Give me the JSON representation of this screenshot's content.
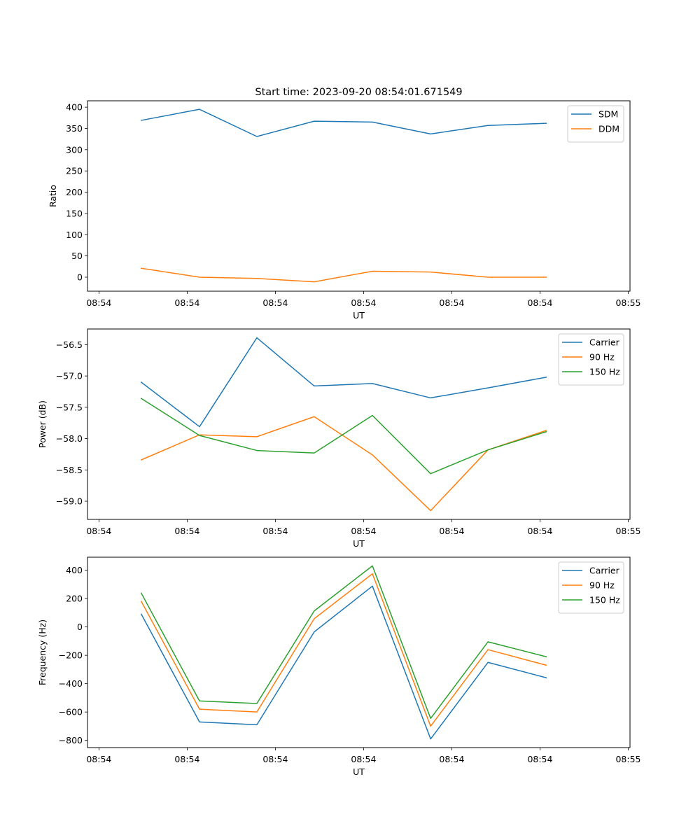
{
  "title": "Start time: 2023-09-20 08:54:01.671549",
  "colors": {
    "blue": "#1f77b4",
    "orange": "#ff7f0e",
    "green": "#2ca02c"
  },
  "chart_data": [
    {
      "type": "line",
      "title": "Start time: 2023-09-20 08:54:01.671549",
      "xlabel": "UT",
      "ylabel": "Ratio",
      "x": [
        4.8,
        11.4,
        17.9,
        24.4,
        31.0,
        37.6,
        44.1,
        50.7
      ],
      "x_units": "seconds after first tick",
      "xlim": [
        -1.3,
        60.2
      ],
      "xticks": [
        0,
        10,
        20,
        30,
        40,
        50,
        60
      ],
      "xtick_labels": [
        "08:54",
        "08:54",
        "08:54",
        "08:54",
        "08:54",
        "08:54",
        "08:55"
      ],
      "ylim": [
        -33,
        415
      ],
      "yticks": [
        0,
        50,
        100,
        150,
        200,
        250,
        300,
        350,
        400
      ],
      "ytick_labels": [
        "0",
        "50",
        "100",
        "150",
        "200",
        "250",
        "300",
        "350",
        "400"
      ],
      "grid": false,
      "legend_position": "top-right",
      "series": [
        {
          "name": "SDM",
          "color": "#1f77b4",
          "values": [
            369,
            395,
            331,
            367,
            365,
            337,
            357,
            362
          ]
        },
        {
          "name": "DDM",
          "color": "#ff7f0e",
          "values": [
            21,
            0,
            -3,
            -11,
            14,
            12,
            0,
            0
          ]
        }
      ]
    },
    {
      "type": "line",
      "title": "",
      "xlabel": "UT",
      "ylabel": "Power (dB)",
      "x": [
        4.8,
        11.4,
        17.9,
        24.4,
        31.0,
        37.6,
        44.1,
        50.7
      ],
      "x_units": "seconds after first tick",
      "xlim": [
        -1.3,
        60.2
      ],
      "xticks": [
        0,
        10,
        20,
        30,
        40,
        50,
        60
      ],
      "xtick_labels": [
        "08:54",
        "08:54",
        "08:54",
        "08:54",
        "08:54",
        "08:54",
        "08:55"
      ],
      "ylim": [
        -59.29,
        -56.25
      ],
      "yticks": [
        -59.0,
        -58.5,
        -58.0,
        -57.5,
        -57.0,
        -56.5
      ],
      "ytick_labels": [
        "−59.0",
        "−58.5",
        "−58.0",
        "−57.5",
        "−57.0",
        "−56.5"
      ],
      "grid": false,
      "legend_position": "top-right",
      "series": [
        {
          "name": "Carrier",
          "color": "#1f77b4",
          "values": [
            -57.1,
            -57.81,
            -56.39,
            -57.16,
            -57.12,
            -57.35,
            -57.19,
            -57.02
          ]
        },
        {
          "name": "90 Hz",
          "color": "#ff7f0e",
          "values": [
            -58.34,
            -57.94,
            -57.97,
            -57.65,
            -58.26,
            -59.15,
            -58.18,
            -57.87
          ]
        },
        {
          "name": "150 Hz",
          "color": "#2ca02c",
          "values": [
            -57.36,
            -57.95,
            -58.19,
            -58.23,
            -57.63,
            -58.56,
            -58.18,
            -57.89
          ]
        }
      ]
    },
    {
      "type": "line",
      "title": "",
      "xlabel": "UT",
      "ylabel": "Frequency (Hz)",
      "x": [
        4.8,
        11.4,
        17.9,
        24.4,
        31.0,
        37.6,
        44.1,
        50.7
      ],
      "x_units": "seconds after first tick",
      "xlim": [
        -1.3,
        60.2
      ],
      "xticks": [
        0,
        10,
        20,
        30,
        40,
        50,
        60
      ],
      "xtick_labels": [
        "08:54",
        "08:54",
        "08:54",
        "08:54",
        "08:54",
        "08:54",
        "08:55"
      ],
      "ylim": [
        -851,
        492
      ],
      "yticks": [
        -800,
        -600,
        -400,
        -200,
        0,
        200,
        400
      ],
      "ytick_labels": [
        "−800",
        "−600",
        "−400",
        "−200",
        "0",
        "200",
        "400"
      ],
      "grid": false,
      "legend_position": "top-right",
      "series": [
        {
          "name": "Carrier",
          "color": "#1f77b4",
          "values": [
            90,
            -670,
            -690,
            -35,
            288,
            -790,
            -250,
            -358
          ]
        },
        {
          "name": "90 Hz",
          "color": "#ff7f0e",
          "values": [
            180,
            -580,
            -600,
            58,
            375,
            -700,
            -160,
            -270
          ]
        },
        {
          "name": "150 Hz",
          "color": "#2ca02c",
          "values": [
            238,
            -522,
            -540,
            113,
            431,
            -645,
            -105,
            -210
          ]
        }
      ]
    }
  ]
}
